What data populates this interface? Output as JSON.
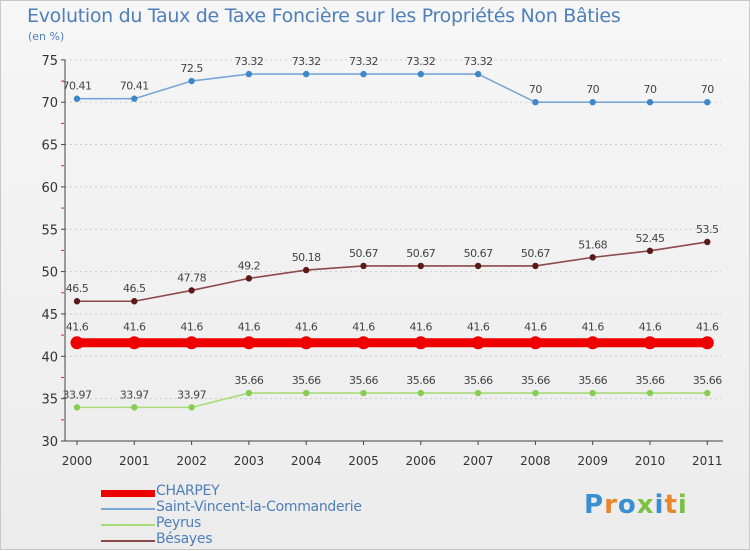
{
  "header": {
    "title": "Evolution du Taux de Taxe Foncière sur les Propriétés Non Bâties",
    "subtitle": "(en %)"
  },
  "brand": {
    "logo_text": "Proxiti"
  },
  "colors": {
    "axis": "#444444",
    "grid": "#cccccc",
    "tick_text": "#333333",
    "label_text": "#444444",
    "legend_text": "#4e7fb8"
  },
  "chart_data": {
    "type": "line",
    "title": "Evolution du Taux de Taxe Foncière sur les Propriétés Non Bâties",
    "ylabel": "(en %)",
    "xlabel": "",
    "ylim": [
      30,
      75
    ],
    "yticks": [
      30,
      35,
      40,
      45,
      50,
      55,
      60,
      65,
      70,
      75
    ],
    "grid": "dashed horizontal",
    "legend_position": "bottom-left",
    "x": [
      "2000",
      "2001",
      "2002",
      "2003",
      "2004",
      "2005",
      "2006",
      "2007",
      "2008",
      "2009",
      "2010",
      "2011"
    ],
    "series": [
      {
        "name": "CHARPEY",
        "color": "#ee0000",
        "marker": "#ee0000",
        "style": "thick",
        "values": [
          41.6,
          41.6,
          41.6,
          41.6,
          41.6,
          41.6,
          41.6,
          41.6,
          41.6,
          41.6,
          41.6,
          41.6
        ],
        "labels": [
          "41.6",
          "41.6",
          "41.6",
          "41.6",
          "41.6",
          "41.6",
          "41.6",
          "41.6",
          "41.6",
          "41.6",
          "41.6",
          "41.6"
        ]
      },
      {
        "name": "Saint-Vincent-la-Commanderie",
        "color": "#7aa6d6",
        "marker": "#3f88c8",
        "style": "thin",
        "values": [
          70.41,
          70.41,
          72.5,
          73.32,
          73.32,
          73.32,
          73.32,
          73.32,
          70,
          70,
          70,
          70
        ],
        "labels": [
          "70.41",
          "70.41",
          "72.5",
          "73.32",
          "73.32",
          "73.32",
          "73.32",
          "73.32",
          "70",
          "70",
          "70",
          "70"
        ]
      },
      {
        "name": "Peyrus",
        "color": "#a8dc78",
        "marker": "#88cc55",
        "style": "thin",
        "values": [
          33.97,
          33.97,
          33.97,
          35.66,
          35.66,
          35.66,
          35.66,
          35.66,
          35.66,
          35.66,
          35.66,
          35.66
        ],
        "labels": [
          "33.97",
          "33.97",
          "33.97",
          "35.66",
          "35.66",
          "35.66",
          "35.66",
          "35.66",
          "35.66",
          "35.66",
          "35.66",
          "35.66"
        ]
      },
      {
        "name": "Bésayes",
        "color": "#8c4a4a",
        "marker": "#5a1a1a",
        "style": "thin",
        "values": [
          46.5,
          46.5,
          47.78,
          49.2,
          50.18,
          50.67,
          50.67,
          50.67,
          50.67,
          51.68,
          52.45,
          53.5
        ],
        "labels": [
          "46.5",
          "46.5",
          "47.78",
          "49.2",
          "50.18",
          "50.67",
          "50.67",
          "50.67",
          "50.67",
          "51.68",
          "52.45",
          "53.5"
        ]
      }
    ]
  }
}
